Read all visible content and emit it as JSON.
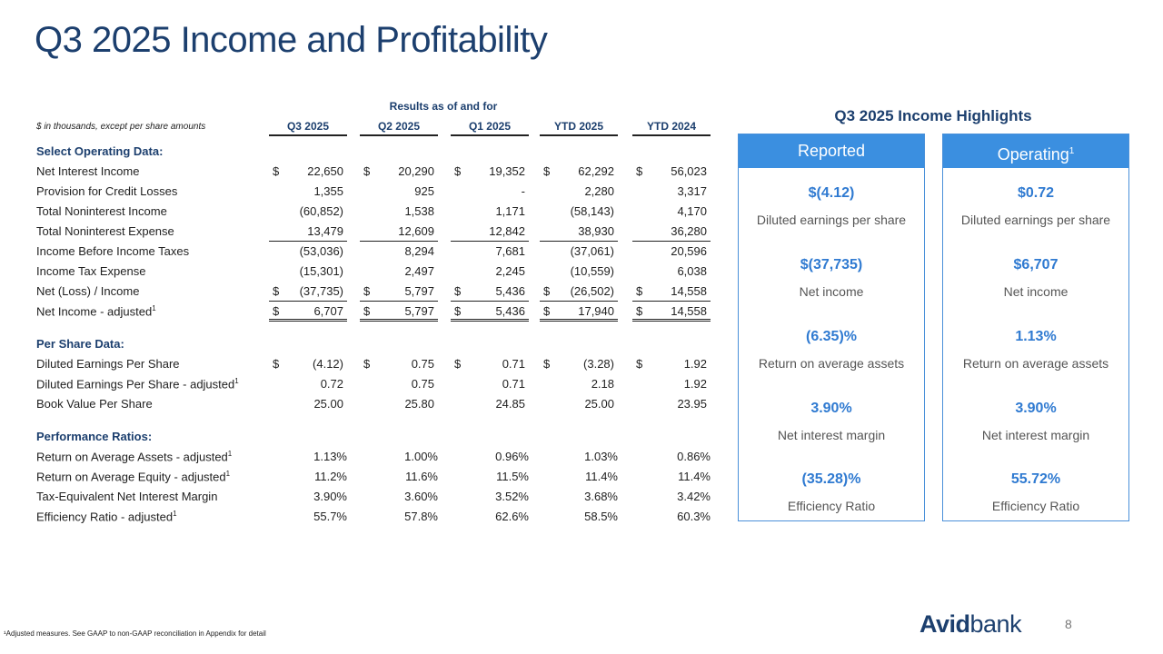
{
  "title": "Q3 2025 Income and Profitability",
  "table": {
    "group_header": "Results as of and for",
    "units": "$ in thousands, except per share amounts",
    "columns": [
      "Q3 2025",
      "Q2 2025",
      "Q1 2025",
      "YTD 2025",
      "YTD 2024"
    ],
    "rows": [
      {
        "type": "section",
        "label": "Select Operating Data:"
      },
      {
        "type": "data",
        "label": "Net Interest Income",
        "values": [
          "22,650",
          "20,290",
          "19,352",
          "62,292",
          "56,023"
        ],
        "dollar": true
      },
      {
        "type": "data",
        "label": "Provision for Credit Losses",
        "values": [
          "1,355",
          "925",
          "-",
          "2,280",
          "3,317"
        ]
      },
      {
        "type": "data",
        "label": "Total Noninterest Income",
        "values": [
          "(60,852)",
          "1,538",
          "1,171",
          "(58,143)",
          "4,170"
        ]
      },
      {
        "type": "data",
        "label": "Total Noninterest Expense",
        "values": [
          "13,479",
          "12,609",
          "12,842",
          "38,930",
          "36,280"
        ],
        "underline": "single"
      },
      {
        "type": "data",
        "label": "Income Before Income Taxes",
        "values": [
          "(53,036)",
          "8,294",
          "7,681",
          "(37,061)",
          "20,596"
        ]
      },
      {
        "type": "data",
        "label": "Income Tax Expense",
        "values": [
          "(15,301)",
          "2,497",
          "2,245",
          "(10,559)",
          "6,038"
        ]
      },
      {
        "type": "data",
        "label": "Net (Loss) / Income",
        "values": [
          "(37,735)",
          "5,797",
          "5,436",
          "(26,502)",
          "14,558"
        ],
        "dollar": true,
        "underline": "single"
      },
      {
        "type": "data",
        "label": "Net Income - adjusted",
        "sup": "1",
        "values": [
          "6,707",
          "5,797",
          "5,436",
          "17,940",
          "14,558"
        ],
        "dollar": true,
        "underline": "double"
      },
      {
        "type": "spacer"
      },
      {
        "type": "section",
        "label": "Per Share Data:"
      },
      {
        "type": "data",
        "label": "Diluted Earnings Per Share",
        "values": [
          "(4.12)",
          "0.75",
          "0.71",
          "(3.28)",
          "1.92"
        ],
        "dollar": true
      },
      {
        "type": "data",
        "label": "Diluted Earnings Per Share - adjusted",
        "sup": "1",
        "values": [
          "0.72",
          "0.75",
          "0.71",
          "2.18",
          "1.92"
        ]
      },
      {
        "type": "data",
        "label": "Book Value Per Share",
        "values": [
          "25.00",
          "25.80",
          "24.85",
          "25.00",
          "23.95"
        ]
      },
      {
        "type": "spacer"
      },
      {
        "type": "section",
        "label": "Performance Ratios:"
      },
      {
        "type": "data",
        "label": "Return on Average Assets - adjusted",
        "sup": "1",
        "values": [
          "1.13%",
          "1.00%",
          "0.96%",
          "1.03%",
          "0.86%"
        ],
        "pct": true
      },
      {
        "type": "data",
        "label": "Return on Average Equity - adjusted",
        "sup": "1",
        "values": [
          "11.2%",
          "11.6%",
          "11.5%",
          "11.4%",
          "11.4%"
        ],
        "pct": true
      },
      {
        "type": "data",
        "label": "Tax-Equivalent Net Interest Margin",
        "values": [
          "3.90%",
          "3.60%",
          "3.52%",
          "3.68%",
          "3.42%"
        ],
        "pct": true
      },
      {
        "type": "data",
        "label": "Efficiency Ratio - adjusted",
        "sup": "1",
        "values": [
          "55.7%",
          "57.8%",
          "62.6%",
          "58.5%",
          "60.3%"
        ],
        "pct": true
      }
    ]
  },
  "highlights": {
    "title": "Q3 2025 Income Highlights",
    "cards": [
      {
        "name": "reported",
        "label": "Reported",
        "sup": "",
        "metrics": [
          {
            "value": "$(4.12)",
            "caption": "Diluted earnings per share"
          },
          {
            "value": "$(37,735)",
            "caption": "Net income"
          },
          {
            "value": "(6.35)%",
            "caption": "Return on average assets"
          },
          {
            "value": "3.90%",
            "caption": "Net interest margin"
          },
          {
            "value": "(35.28)%",
            "caption": "Efficiency Ratio"
          }
        ]
      },
      {
        "name": "operating",
        "label": "Operating",
        "sup": "1",
        "metrics": [
          {
            "value": "$0.72",
            "caption": "Diluted earnings per share"
          },
          {
            "value": "$6,707",
            "caption": "Net income"
          },
          {
            "value": "1.13%",
            "caption": "Return on average assets"
          },
          {
            "value": "3.90%",
            "caption": "Net interest margin"
          },
          {
            "value": "55.72%",
            "caption": "Efficiency Ratio"
          }
        ]
      }
    ]
  },
  "footnote": "¹Adjusted measures. See GAAP to non-GAAP reconciliation in Appendix for detail",
  "logo": {
    "bold": "Avid",
    "light": "bank"
  },
  "page_number": "8",
  "colors": {
    "title": "#1c3f6e",
    "accent": "#3b8fe0",
    "value": "#2f7ad1"
  }
}
